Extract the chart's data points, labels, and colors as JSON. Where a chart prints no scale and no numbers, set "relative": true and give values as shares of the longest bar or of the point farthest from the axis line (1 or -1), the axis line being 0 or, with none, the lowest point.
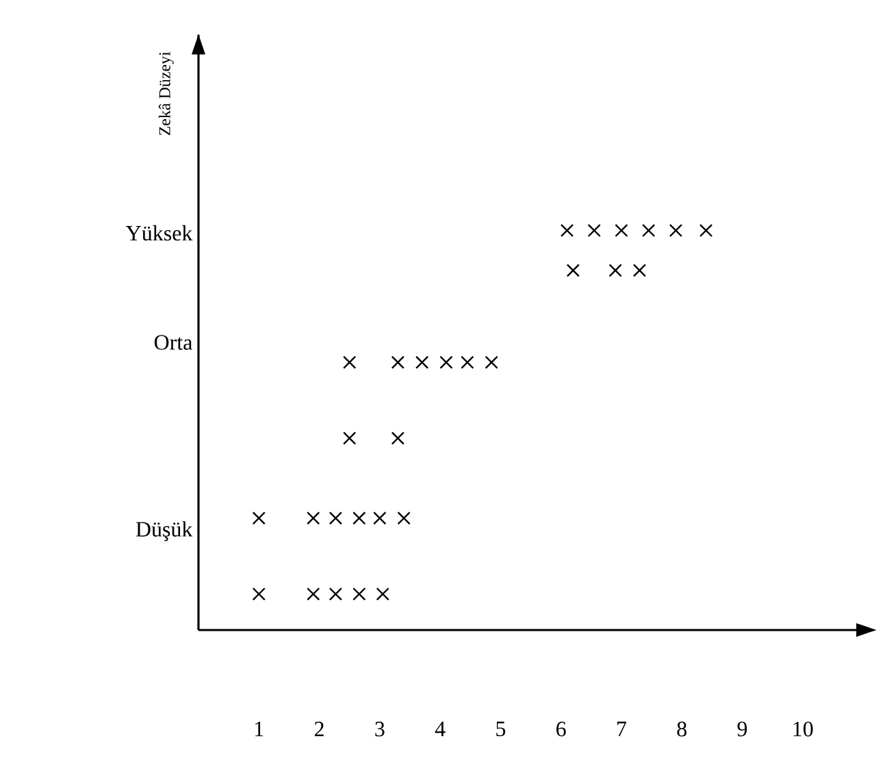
{
  "chart_data": {
    "type": "scatter",
    "marker": "cross",
    "relative": true,
    "annotations": [
      "Zekâ Düzeyi",
      "Yüksek",
      "Orta",
      "Düşük"
    ],
    "series": [
      {
        "color": "#000000",
        "x": [
          1.0,
          1.9,
          2.27,
          2.66,
          3.05,
          1.0,
          1.9,
          2.27,
          2.66,
          3.0,
          3.4
        ],
        "values": [
          0.09,
          0.09,
          0.09,
          0.09,
          0.09,
          0.28,
          0.28,
          0.28,
          0.28,
          0.28,
          0.28
        ]
      },
      {
        "color": "#000000",
        "x": [
          2.5,
          3.3,
          2.5,
          3.3,
          3.7,
          4.1,
          4.45,
          4.85
        ],
        "values": [
          0.48,
          0.48,
          0.67,
          0.67,
          0.67,
          0.67,
          0.67,
          0.67
        ]
      },
      {
        "color": "#000000",
        "x": [
          6.2,
          6.9,
          7.3,
          6.1,
          6.55,
          7.0,
          7.45,
          7.9,
          8.4
        ],
        "values": [
          0.9,
          0.9,
          0.9,
          1,
          1,
          1,
          1,
          1,
          1
        ]
      }
    ],
    "xlim": [
      0,
      11.1
    ],
    "xticks": [
      1,
      2,
      3,
      4,
      5,
      6,
      7,
      8,
      9,
      10
    ]
  }
}
